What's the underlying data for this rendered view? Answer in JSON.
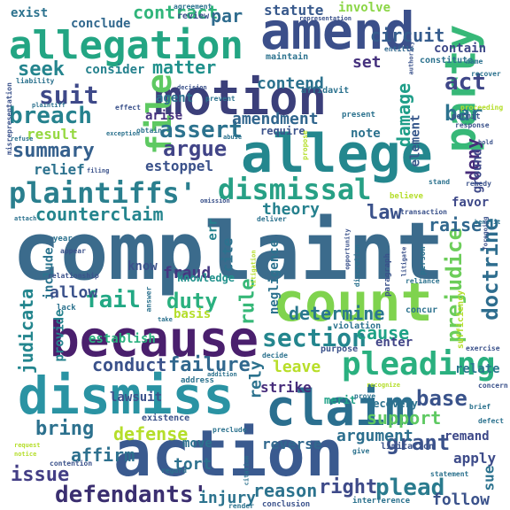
{
  "words": [
    {
      "text": "complaint",
      "color": "#3b6b8c"
    },
    {
      "text": "action",
      "color": "#3a5a8f"
    },
    {
      "text": "dismiss",
      "color": "#2a93a3"
    },
    {
      "text": "because",
      "color": "#4a1f6d"
    },
    {
      "text": "allege",
      "color": "#24878e"
    },
    {
      "text": "motion",
      "color": "#3b3f7a"
    },
    {
      "text": "count",
      "color": "#7fd34e"
    },
    {
      "text": "claim",
      "color": "#2b6f8f"
    },
    {
      "text": "amend",
      "color": "#3b4f8a"
    },
    {
      "text": "allegation",
      "color": "#23a583"
    },
    {
      "text": "party",
      "color": "#37b878"
    },
    {
      "text": "file",
      "color": "#5ec962"
    },
    {
      "text": "pleading",
      "color": "#2ab07f"
    },
    {
      "text": "plaintiffs'",
      "color": "#2a7f8e"
    },
    {
      "text": "dismissal",
      "color": "#27a085"
    },
    {
      "text": "section",
      "color": "#24868e"
    },
    {
      "text": "defendants'",
      "color": "#3b2f70"
    },
    {
      "text": "suit",
      "color": "#3e4989"
    },
    {
      "text": "breach",
      "color": "#26828e"
    },
    {
      "text": "assert",
      "color": "#2c728e"
    },
    {
      "text": "argue",
      "color": "#414487"
    },
    {
      "text": "summary",
      "color": "#35608d"
    },
    {
      "text": "counterclaim",
      "color": "#25858e"
    },
    {
      "text": "fail",
      "color": "#22a884"
    },
    {
      "text": "duty",
      "color": "#2ab07f"
    },
    {
      "text": "conduct",
      "color": "#3b528b"
    },
    {
      "text": "failure",
      "color": "#31688e"
    },
    {
      "text": "bring",
      "color": "#2c718e"
    },
    {
      "text": "defense",
      "color": "#b5de2b"
    },
    {
      "text": "affirm",
      "color": "#2d708e"
    },
    {
      "text": "issue",
      "color": "#433e85"
    },
    {
      "text": "grant",
      "color": "#3b528b"
    },
    {
      "text": "plead",
      "color": "#2a7b8e"
    },
    {
      "text": "right",
      "color": "#3e4a89"
    },
    {
      "text": "reason",
      "color": "#2c738e"
    },
    {
      "text": "support",
      "color": "#5ec962"
    },
    {
      "text": "argument",
      "color": "#2d6f8e"
    },
    {
      "text": "base",
      "color": "#3a538b"
    },
    {
      "text": "cause",
      "color": "#1fa287"
    },
    {
      "text": "leave",
      "color": "#b8de29"
    },
    {
      "text": "prejudice",
      "color": "#6ccd5a"
    },
    {
      "text": "doctrine",
      "color": "#2e6d8e"
    },
    {
      "text": "deny",
      "color": "#472d7b"
    },
    {
      "text": "raise",
      "color": "#31688e"
    },
    {
      "text": "law",
      "color": "#3b528b"
    },
    {
      "text": "theory",
      "color": "#26818e"
    },
    {
      "text": "fraud",
      "color": "#453781"
    },
    {
      "text": "determine",
      "color": "#2a788e"
    },
    {
      "text": "amendment",
      "color": "#31668e"
    },
    {
      "text": "contend",
      "color": "#2c728e"
    },
    {
      "text": "damage",
      "color": "#1f9e89"
    },
    {
      "text": "matter",
      "color": "#21918c"
    },
    {
      "text": "seek",
      "color": "#25858e"
    },
    {
      "text": "contract",
      "color": "#31b57b"
    },
    {
      "text": "par",
      "color": "#2f6c8e"
    },
    {
      "text": "circuit",
      "color": "#365c8d"
    },
    {
      "text": "act",
      "color": "#3f4788"
    },
    {
      "text": "set",
      "color": "#46327e"
    },
    {
      "text": "bar",
      "color": "#2c728e"
    },
    {
      "text": "element",
      "color": "#38598c"
    },
    {
      "text": "ground",
      "color": "#3e4989"
    },
    {
      "text": "judicata",
      "color": "#24868e"
    },
    {
      "text": "include",
      "color": "#2b748e"
    },
    {
      "text": "allow",
      "color": "#3b528b"
    },
    {
      "text": "establish",
      "color": "#2ab07f"
    },
    {
      "text": "provide",
      "color": "#26828e"
    },
    {
      "text": "rule",
      "color": "#37b878"
    },
    {
      "text": "rely",
      "color": "#2c728e"
    },
    {
      "text": "strike",
      "color": "#472d7b"
    },
    {
      "text": "tort",
      "color": "#2d718e"
    },
    {
      "text": "injury",
      "color": "#2c738e"
    },
    {
      "text": "follow",
      "color": "#3b528b"
    },
    {
      "text": "apply",
      "color": "#3e4c8a"
    },
    {
      "text": "remand",
      "color": "#3e4989"
    },
    {
      "text": "sue",
      "color": "#2c728e"
    },
    {
      "text": "relate",
      "color": "#2a788e"
    },
    {
      "text": "enter",
      "color": "#414487"
    },
    {
      "text": "knowledge",
      "color": "#21918c"
    },
    {
      "text": "basis",
      "color": "#b5de2b"
    },
    {
      "text": "result",
      "color": "#95d840"
    },
    {
      "text": "relief",
      "color": "#2c728e"
    },
    {
      "text": "estoppel",
      "color": "#3b528b"
    },
    {
      "text": "exist",
      "color": "#2c728e"
    },
    {
      "text": "conclude",
      "color": "#31688e"
    },
    {
      "text": "consider",
      "color": "#26828e"
    },
    {
      "text": "agent",
      "color": "#2c728e"
    },
    {
      "text": "arise",
      "color": "#46327e"
    },
    {
      "text": "note",
      "color": "#2c728e"
    },
    {
      "text": "statute",
      "color": "#38598c"
    },
    {
      "text": "involve",
      "color": "#8bd646"
    },
    {
      "text": "contain",
      "color": "#3e4989"
    },
    {
      "text": "constitute",
      "color": "#2c728e"
    },
    {
      "text": "require",
      "color": "#3b528b"
    },
    {
      "text": "move",
      "color": "#2c728e"
    },
    {
      "text": "lawsuit",
      "color": "#3b528b"
    },
    {
      "text": "favor",
      "color": "#3e4989"
    },
    {
      "text": "cite",
      "color": "#2c728e"
    },
    {
      "text": "err",
      "color": "#26828e"
    },
    {
      "text": "negligence",
      "color": "#2c728e"
    },
    {
      "text": "recovery",
      "color": "#2c728e"
    },
    {
      "text": "merit",
      "color": "#1fa187"
    },
    {
      "text": "reverse",
      "color": "#31688e"
    },
    {
      "text": "know",
      "color": "#3b528b"
    },
    {
      "text": "affidavit",
      "color": "#2c728e"
    },
    {
      "text": "maintain",
      "color": "#2c728e"
    },
    {
      "text": "agreement",
      "color": "#2c728e"
    },
    {
      "text": "review",
      "color": "#3b528b"
    },
    {
      "text": "misrepresentation",
      "color": "#3b528b"
    },
    {
      "text": "representation",
      "color": "#3b528b"
    },
    {
      "text": "entitle",
      "color": "#31688e"
    },
    {
      "text": "name",
      "color": "#2c728e"
    },
    {
      "text": "recover",
      "color": "#2c728e"
    },
    {
      "text": "proceeding",
      "color": "#b5de2b"
    },
    {
      "text": "permit",
      "color": "#3b528b"
    },
    {
      "text": "response",
      "color": "#3b528b"
    },
    {
      "text": "present",
      "color": "#2c728e"
    },
    {
      "text": "obtain",
      "color": "#2c728e"
    },
    {
      "text": "propose",
      "color": "#b5de2b"
    },
    {
      "text": "abuse",
      "color": "#2c728e"
    },
    {
      "text": "believe",
      "color": "#b5de2b"
    },
    {
      "text": "remedy",
      "color": "#3b528b"
    },
    {
      "text": "stand",
      "color": "#2c728e"
    },
    {
      "text": "transaction",
      "color": "#3b528b"
    },
    {
      "text": "deliver",
      "color": "#2c728e"
    },
    {
      "text": "omission",
      "color": "#3b528b"
    },
    {
      "text": "attach",
      "color": "#2c728e"
    },
    {
      "text": "year",
      "color": "#2c728e"
    },
    {
      "text": "appear",
      "color": "#3b528b"
    },
    {
      "text": "relationship",
      "color": "#3b528b"
    },
    {
      "text": "answer",
      "color": "#2c728e"
    },
    {
      "text": "litigation",
      "color": "#b5de2b"
    },
    {
      "text": "discretion",
      "color": "#2c728e"
    },
    {
      "text": "paragraph",
      "color": "#3b528b"
    },
    {
      "text": "person",
      "color": "#2c728e"
    },
    {
      "text": "reliance",
      "color": "#2c728e"
    },
    {
      "text": "opportunity",
      "color": "#3b528b"
    },
    {
      "text": "litigate",
      "color": "#3b528b"
    },
    {
      "text": "lack",
      "color": "#2c728e"
    },
    {
      "text": "purpose",
      "color": "#3b528b"
    },
    {
      "text": "violation",
      "color": "#2c728e"
    },
    {
      "text": "concur",
      "color": "#2c728e"
    },
    {
      "text": "sufficiency",
      "color": "#b5de2b"
    },
    {
      "text": "exercise",
      "color": "#3b528b"
    },
    {
      "text": "address",
      "color": "#2c728e"
    },
    {
      "text": "decide",
      "color": "#2c728e"
    },
    {
      "text": "existence",
      "color": "#3b528b"
    },
    {
      "text": "preclude",
      "color": "#2c728e"
    },
    {
      "text": "prove",
      "color": "#2c728e"
    },
    {
      "text": "recognize",
      "color": "#b5de2b"
    },
    {
      "text": "concern",
      "color": "#3b528b"
    },
    {
      "text": "brief",
      "color": "#2c728e"
    },
    {
      "text": "defect",
      "color": "#2c728e"
    },
    {
      "text": "limitation",
      "color": "#3b528b"
    },
    {
      "text": "interference",
      "color": "#2c728e"
    },
    {
      "text": "statement",
      "color": "#2c728e"
    },
    {
      "text": "conclusion",
      "color": "#3b528b"
    },
    {
      "text": "render",
      "color": "#2c728e"
    },
    {
      "text": "contention",
      "color": "#3b528b"
    },
    {
      "text": "regard",
      "color": "#2c728e"
    },
    {
      "text": "request",
      "color": "#b5de2b"
    },
    {
      "text": "notice",
      "color": "#b5de2b"
    },
    {
      "text": "refuse",
      "color": "#2c728e"
    },
    {
      "text": "effect",
      "color": "#3b528b"
    },
    {
      "text": "prevent",
      "color": "#2c728e"
    },
    {
      "text": "decision",
      "color": "#3b528b"
    },
    {
      "text": "liability",
      "color": "#2c728e"
    },
    {
      "text": "plaintiff",
      "color": "#2c728e"
    },
    {
      "text": "exception",
      "color": "#2c728e"
    },
    {
      "text": "authority",
      "color": "#3b528b"
    },
    {
      "text": "give",
      "color": "#2c728e"
    },
    {
      "text": "filing",
      "color": "#3b528b"
    },
    {
      "text": "benefit",
      "color": "#2c728e"
    },
    {
      "text": "foregoing",
      "color": "#3b528b"
    },
    {
      "text": "citation",
      "color": "#2c728e"
    },
    {
      "text": "take",
      "color": "#2c728e"
    },
    {
      "text": "hold",
      "color": "#3b528b"
    },
    {
      "text": "addition",
      "color": "#2c728e"
    }
  ]
}
